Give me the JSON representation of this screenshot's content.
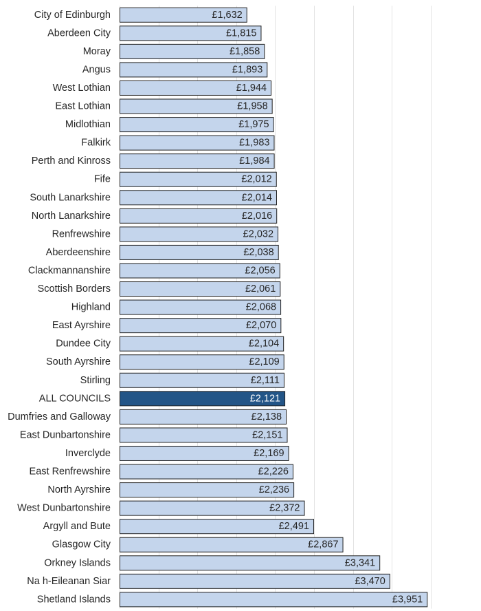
{
  "chart_data": {
    "type": "bar",
    "orientation": "horizontal",
    "title": "",
    "xlabel": "",
    "ylabel": "",
    "value_prefix": "£",
    "xlim": [
      0,
      4000
    ],
    "grid": true,
    "highlight": "ALL COUNCILS",
    "colors": {
      "bar": "#c4d5ec",
      "highlight": "#235587",
      "border": "#1f1f1f"
    },
    "categories": [
      "City of Edinburgh",
      "Aberdeen City",
      "Moray",
      "Angus",
      "West Lothian",
      "East Lothian",
      "Midlothian",
      "Falkirk",
      "Perth and Kinross",
      "Fife",
      "South Lanarkshire",
      "North Lanarkshire",
      "Renfrewshire",
      "Aberdeenshire",
      "Clackmannanshire",
      "Scottish Borders",
      "Highland",
      "East Ayrshire",
      "Dundee City",
      "South Ayrshire",
      "Stirling",
      "ALL COUNCILS",
      "Dumfries and Galloway",
      "East Dunbartonshire",
      "Inverclyde",
      "East Renfrewshire",
      "North Ayrshire",
      "West Dunbartonshire",
      "Argyll and Bute",
      "Glasgow City",
      "Orkney Islands",
      "Na h-Eileanan Siar",
      "Shetland Islands"
    ],
    "values": [
      1632,
      1815,
      1858,
      1893,
      1944,
      1958,
      1975,
      1983,
      1984,
      2012,
      2014,
      2016,
      2032,
      2038,
      2056,
      2061,
      2068,
      2070,
      2104,
      2109,
      2111,
      2121,
      2138,
      2151,
      2169,
      2226,
      2236,
      2372,
      2491,
      2867,
      3341,
      3470,
      3951
    ],
    "value_labels": [
      "£1,632",
      "£1,815",
      "£1,858",
      "£1,893",
      "£1,944",
      "£1,958",
      "£1,975",
      "£1,983",
      "£1,984",
      "£2,012",
      "£2,014",
      "£2,016",
      "£2,032",
      "£2,038",
      "£2,056",
      "£2,061",
      "£2,068",
      "£2,070",
      "£2,104",
      "£2,109",
      "£2,111",
      "£2,121",
      "£2,138",
      "£2,151",
      "£2,169",
      "£2,226",
      "£2,236",
      "£2,372",
      "£2,491",
      "£2,867",
      "£3,341",
      "£3,470",
      "£3,951"
    ]
  }
}
